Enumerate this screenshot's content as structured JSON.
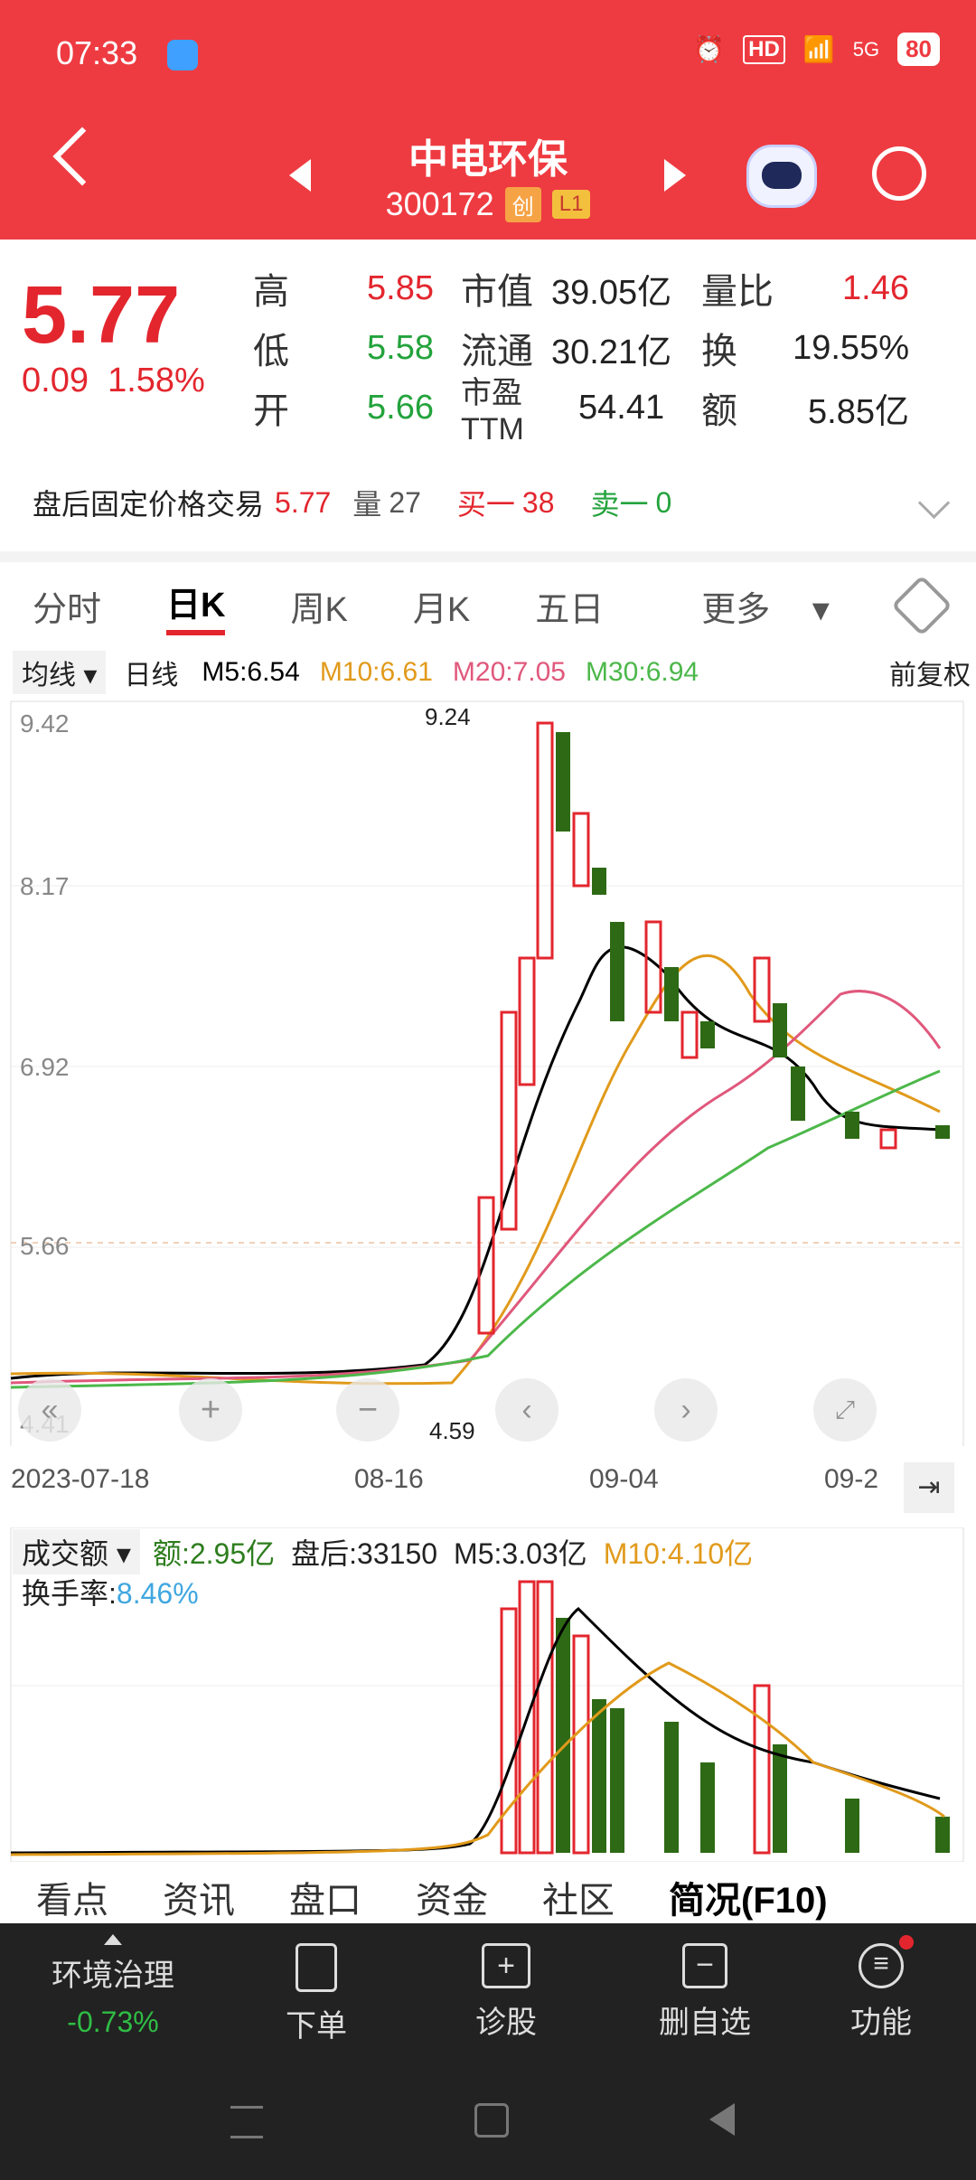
{
  "status": {
    "time": "07:33",
    "battery": "80",
    "hd": "HD",
    "net": "5G"
  },
  "header": {
    "name": "中电环保",
    "code": "300172",
    "tag1": "创",
    "tag2": "L1"
  },
  "quote": {
    "price": "5.77",
    "change": "0.09",
    "change_pct": "1.58%",
    "rows": [
      {
        "l1": "高",
        "v1": "5.85",
        "l2": "市值",
        "v2": "39.05亿",
        "l3": "量比",
        "v3": "1.46"
      },
      {
        "l1": "低",
        "v1": "5.58",
        "l2": "流通",
        "v2": "30.21亿",
        "l3": "换",
        "v3": "19.55%"
      },
      {
        "l1": "开",
        "v1": "5.66",
        "l2": "市盈TTM",
        "v2": "54.41",
        "l3": "额",
        "v3": "5.85亿"
      }
    ]
  },
  "after": {
    "label": "盘后固定价格交易",
    "price": "5.77",
    "vol_label": "量",
    "vol": "27",
    "buy_label": "买一",
    "buy": "38",
    "sell_label": "卖一",
    "sell": "0"
  },
  "tabs": [
    "分时",
    "日K",
    "周K",
    "月K",
    "五日",
    "更多"
  ],
  "indicators": {
    "ma_btn": "均线",
    "period": "日线",
    "m5": "M5:6.54",
    "m10": "M10:6.61",
    "m20": "M20:7.05",
    "m30": "M30:6.94",
    "adj": "前复权"
  },
  "chart_data": {
    "type": "candlestick",
    "price_axis": {
      "labels": [
        "9.42",
        "8.17",
        "6.92",
        "5.66",
        "4.41"
      ],
      "ref": "5.66"
    },
    "high_mark": "9.24",
    "low_mark": "4.59",
    "x_labels": [
      "2023-07-18",
      "08-16",
      "09-04",
      "09-2"
    ],
    "volume": {
      "btn": "成交额",
      "amount": "额:2.95亿",
      "after": "盘后:33150",
      "m5": "M5:3.03亿",
      "m10": "M10:4.10亿",
      "turnover_label": "换手率:",
      "turnover": "8.46%"
    }
  },
  "tabs2": [
    "看点",
    "资讯",
    "盘口",
    "资金",
    "社区",
    "简况(F10)"
  ],
  "bottom": {
    "sector": "环境治理",
    "sector_chg": "-0.73%",
    "items": [
      {
        "label": "下单"
      },
      {
        "label": "诊股"
      },
      {
        "label": "删自选"
      },
      {
        "label": "功能"
      }
    ]
  }
}
